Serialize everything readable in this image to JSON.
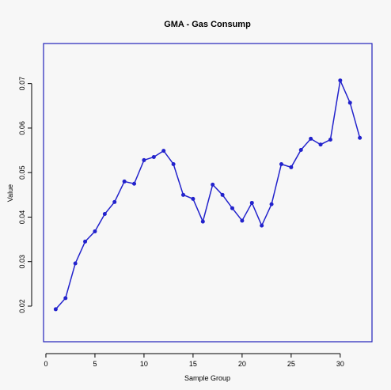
{
  "chart_data": {
    "type": "line",
    "title": "GMA - Gas Consump",
    "x_label": "Sample Group",
    "y_label": "Value",
    "x": [
      1,
      2,
      3,
      4,
      5,
      6,
      7,
      8,
      9,
      10,
      11,
      12,
      13,
      14,
      15,
      16,
      17,
      18,
      19,
      20,
      21,
      22,
      23,
      24,
      25,
      26,
      27,
      28,
      29,
      30,
      31,
      32
    ],
    "values": [
      0.0193,
      0.0218,
      0.0296,
      0.0345,
      0.0368,
      0.0407,
      0.0434,
      0.048,
      0.0475,
      0.0528,
      0.0535,
      0.0549,
      0.0519,
      0.045,
      0.0441,
      0.039,
      0.0473,
      0.045,
      0.042,
      0.0392,
      0.0432,
      0.0381,
      0.0429,
      0.0519,
      0.0512,
      0.0551,
      0.0576,
      0.0563,
      0.0574,
      0.0707,
      0.0657,
      0.0578
    ],
    "color": "#2222cc",
    "frame_color": "#2222bb",
    "xlim": [
      -0.24,
      33.24
    ],
    "xticks": [
      0,
      5,
      10,
      15,
      20,
      25,
      30
    ],
    "ylim": [
      0.012,
      0.079
    ],
    "yticks": [
      0.02,
      0.03,
      0.04,
      0.05,
      0.06,
      0.07
    ]
  }
}
